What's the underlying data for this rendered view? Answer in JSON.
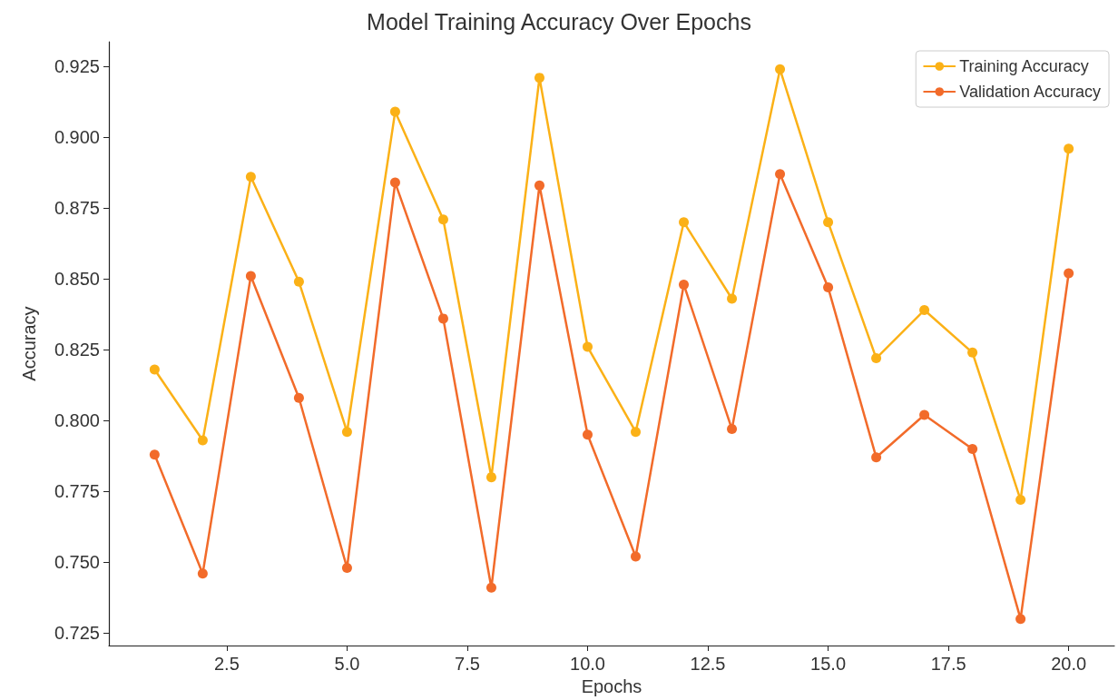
{
  "chart_data": {
    "type": "line",
    "title": "Model Training Accuracy Over Epochs",
    "xlabel": "Epochs",
    "ylabel": "Accuracy",
    "x": [
      1,
      2,
      3,
      4,
      5,
      6,
      7,
      8,
      9,
      10,
      11,
      12,
      13,
      14,
      15,
      16,
      17,
      18,
      19,
      20
    ],
    "series": [
      {
        "name": "Training Accuracy",
        "color": "#fbb117",
        "values": [
          0.818,
          0.793,
          0.886,
          0.849,
          0.796,
          0.909,
          0.871,
          0.78,
          0.921,
          0.826,
          0.796,
          0.87,
          0.843,
          0.924,
          0.87,
          0.822,
          0.839,
          0.824,
          0.772,
          0.896
        ]
      },
      {
        "name": "Validation Accuracy",
        "color": "#f26b2a",
        "values": [
          0.788,
          0.746,
          0.851,
          0.808,
          0.748,
          0.884,
          0.836,
          0.741,
          0.883,
          0.795,
          0.752,
          0.848,
          0.797,
          0.887,
          0.847,
          0.787,
          0.802,
          0.79,
          0.73,
          0.852
        ]
      }
    ],
    "xlim": [
      0.05,
      20.95
    ],
    "xticks": [
      {
        "value": 2.5,
        "label": "2.5"
      },
      {
        "value": 5,
        "label": "5.0"
      },
      {
        "value": 7.5,
        "label": "7.5"
      },
      {
        "value": 10,
        "label": "10.0"
      },
      {
        "value": 12.5,
        "label": "12.5"
      },
      {
        "value": 15,
        "label": "15.0"
      },
      {
        "value": 17.5,
        "label": "17.5"
      },
      {
        "value": 20,
        "label": "20.0"
      }
    ],
    "ylim": [
      0.7206,
      0.9337
    ],
    "yticks": [
      0.725,
      {
        "value": 0.75,
        "label": "0.750"
      },
      0.775,
      {
        "value": 0.8,
        "label": "0.800"
      },
      0.825,
      {
        "value": 0.85,
        "label": "0.850"
      },
      0.875,
      {
        "value": 0.9,
        "label": "0.900"
      },
      0.925
    ],
    "grid": false,
    "legend": "top right",
    "marker": "circle",
    "line_style": "solid"
  }
}
